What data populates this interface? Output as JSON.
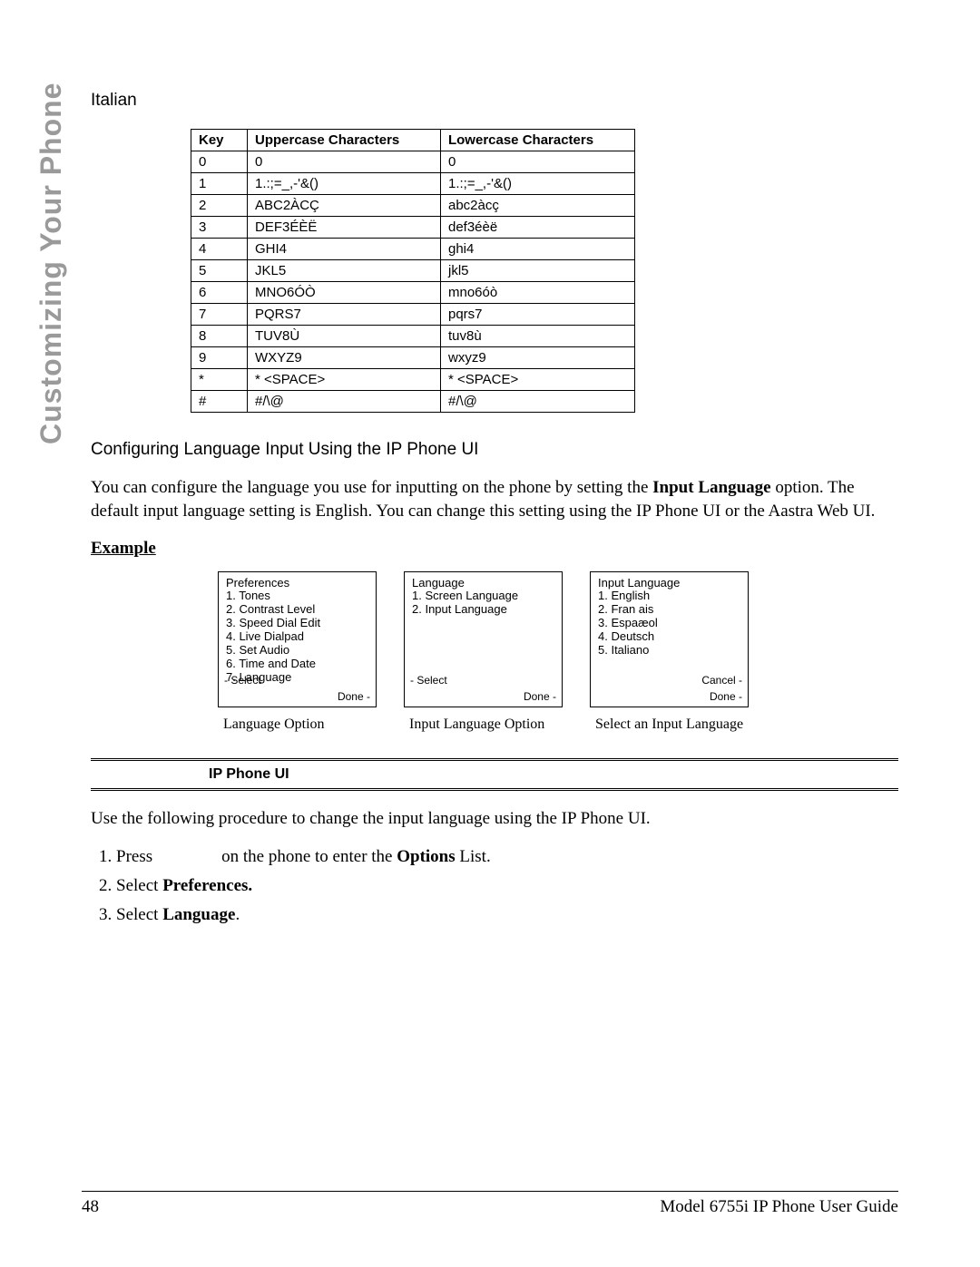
{
  "sideTitle": "Customizing Your Phone",
  "headingItalian": "Italian",
  "table": {
    "headers": [
      "Key",
      "Uppercase Characters",
      "Lowercase Characters"
    ],
    "rows": [
      [
        "0",
        "0",
        "0"
      ],
      [
        "1",
        "1.:;=_,-'&()",
        "1.:;=_,-'&()"
      ],
      [
        "2",
        "ABC2ÀCÇ",
        "abc2àcç"
      ],
      [
        "3",
        "DEF3ÉÈË",
        "def3éèë"
      ],
      [
        "4",
        "GHI4",
        "ghi4"
      ],
      [
        "5",
        "JKL5",
        "jkl5"
      ],
      [
        "6",
        "MNO6ÓÒ",
        "mno6óò"
      ],
      [
        "7",
        "PQRS7",
        "pqrs7"
      ],
      [
        "8",
        "TUV8Ù",
        "tuv8ù"
      ],
      [
        "9",
        "WXYZ9",
        "wxyz9"
      ],
      [
        "*",
        "* <SPACE>",
        "* <SPACE>"
      ],
      [
        "#",
        "#/\\@",
        "#/\\@"
      ]
    ]
  },
  "sectionHeading": "Configuring Language Input Using the IP Phone UI",
  "bodyText1a": "You can configure the language you use for inputting on the phone by setting the ",
  "bodyText1b": "Input Language",
  "bodyText1c": " option. The default input language setting is English. You can change this setting using the IP Phone UI or the Aastra Web UI.",
  "exampleLabel": "Example",
  "screens": [
    {
      "title": "Preferences",
      "items": [
        "1. Tones",
        "2. Contrast Level",
        "3. Speed Dial Edit",
        "4. Live Dialpad",
        "5. Set Audio",
        "6. Time and Date",
        "7. Language"
      ],
      "leftBtn": "- Select",
      "rightTop": "",
      "rightBottom": "Done -",
      "caption": "Language Option"
    },
    {
      "title": "Language",
      "items": [
        "1. Screen Language",
        "2. Input Language"
      ],
      "leftBtn": "- Select",
      "rightTop": "",
      "rightBottom": "Done -",
      "caption": "Input Language Option"
    },
    {
      "title": "Input Language",
      "items": [
        "1. English",
        "2. Fran ais",
        "3. Espaæol",
        "4. Deutsch",
        "5. Italiano"
      ],
      "leftBtn": "",
      "rightTop": "Cancel -",
      "rightBottom": "Done -",
      "caption": "Select an Input Language"
    }
  ],
  "ipPhoneUI": "IP Phone UI",
  "stepsIntro": "Use the following procedure to change the input language using the IP Phone UI.",
  "steps": [
    {
      "pre": "Press ",
      "gap": "          ",
      "post": " on the phone to enter the ",
      "bold": "Options",
      "post2": " List."
    },
    {
      "pre": "Select ",
      "bold": "Preferences.",
      "post": ""
    },
    {
      "pre": "Select ",
      "bold": "Language",
      "post": "."
    }
  ],
  "footer": {
    "pageNum": "48",
    "title": "Model 6755i IP Phone User Guide"
  }
}
